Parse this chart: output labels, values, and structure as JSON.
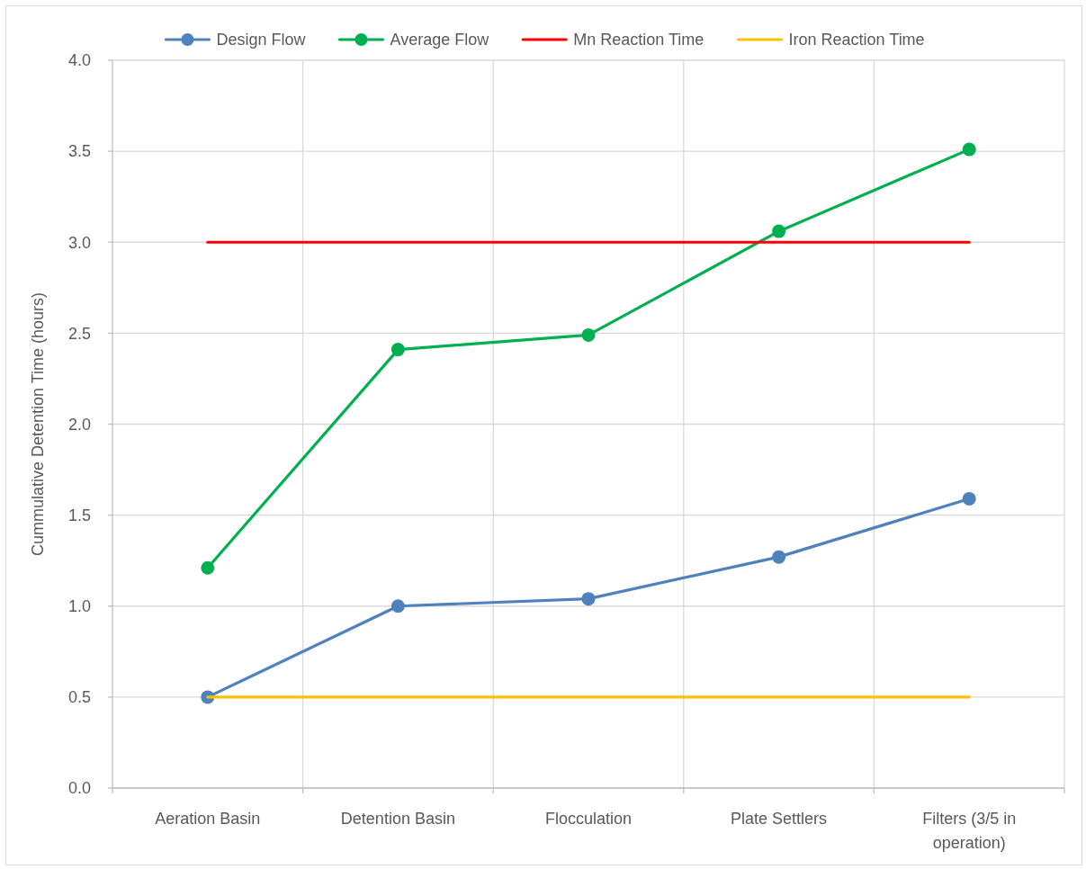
{
  "chart_data": {
    "type": "line",
    "ylabel": "Cummulative Detention Time (hours)",
    "categories": [
      "Aeration Basin",
      "Detention Basin",
      "Flocculation",
      "Plate Settlers",
      "Filters (3/5 in operation)"
    ],
    "series": [
      {
        "name": "Design Flow",
        "color": "#4f81bd",
        "values": [
          0.5,
          1.0,
          1.04,
          1.27,
          1.59
        ]
      },
      {
        "name": "Average Flow",
        "color": "#00b050",
        "values": [
          1.21,
          2.41,
          2.49,
          3.06,
          3.51
        ]
      },
      {
        "name": "Mn Reaction Time",
        "color": "#ff0000",
        "values": [
          3,
          3,
          3,
          3,
          3
        ],
        "marker": "none"
      },
      {
        "name": "Iron Reaction Time",
        "color": "#ffc000",
        "values": [
          0.5,
          0.5,
          0.5,
          0.5,
          0.5
        ],
        "marker": "none"
      }
    ],
    "ylim": [
      0,
      4
    ],
    "yticks": [
      {
        "value": 0,
        "label": "0.0"
      },
      0.5,
      {
        "value": 1,
        "label": "1.0"
      },
      1.5,
      {
        "value": 2,
        "label": "2.0"
      },
      2.5,
      {
        "value": 3,
        "label": "3.0"
      },
      3.5,
      {
        "value": 4,
        "label": "4.0"
      }
    ],
    "grid": true,
    "legend": "top",
    "marker": "circle",
    "line_style": "solid"
  }
}
